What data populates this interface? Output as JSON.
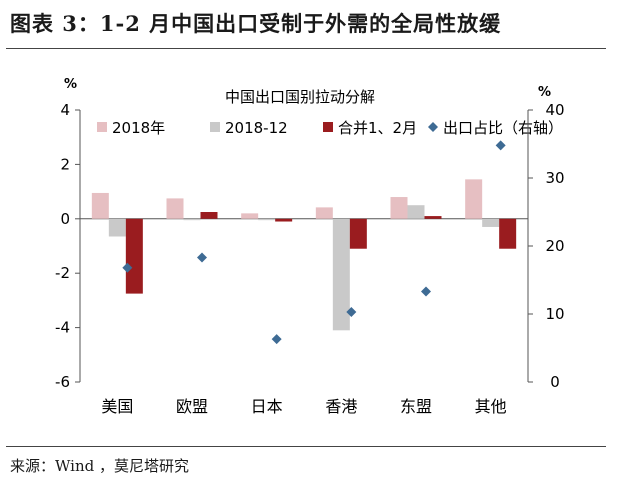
{
  "figure": {
    "title": "图表 3：1-2 月中国出口受制于外需的全局性放缓",
    "source": "来源：Wind ，莫尼塔研究"
  },
  "colors": {
    "s2018": "#e6bfc2",
    "s201812": "#c9c9c9",
    "s2019": "#9a1c1f",
    "share": "#3e6b94",
    "axis": "#555555"
  },
  "chart_data": {
    "type": "bar",
    "title": "中国出口国别拉动分解",
    "categories": [
      "美国",
      "欧盟",
      "日本",
      "香港",
      "东盟",
      "其他"
    ],
    "series": [
      {
        "name": "2018年",
        "values": [
          0.95,
          0.75,
          0.2,
          0.42,
          0.8,
          1.45
        ]
      },
      {
        "name": "2018-12",
        "values": [
          -0.65,
          -0.05,
          -0.05,
          -4.1,
          0.5,
          -0.3
        ]
      },
      {
        "name": "合并1、2月",
        "values": [
          -2.75,
          0.25,
          -0.1,
          -1.1,
          0.1,
          -1.1
        ]
      }
    ],
    "secondary_series": {
      "name": "出口占比（右轴）",
      "type": "scatter",
      "axis": "right",
      "values": [
        16.8,
        18.3,
        6.3,
        10.3,
        13.3,
        34.8
      ]
    },
    "ylabel": "%",
    "y2label": "%",
    "ylim": [
      -6,
      4
    ],
    "yticks": [
      -6,
      -4,
      -2,
      0,
      2,
      4
    ],
    "y2lim": [
      0,
      40
    ],
    "y2ticks": [
      0,
      10,
      20,
      30,
      40
    ],
    "legend": "top",
    "grid": false
  }
}
